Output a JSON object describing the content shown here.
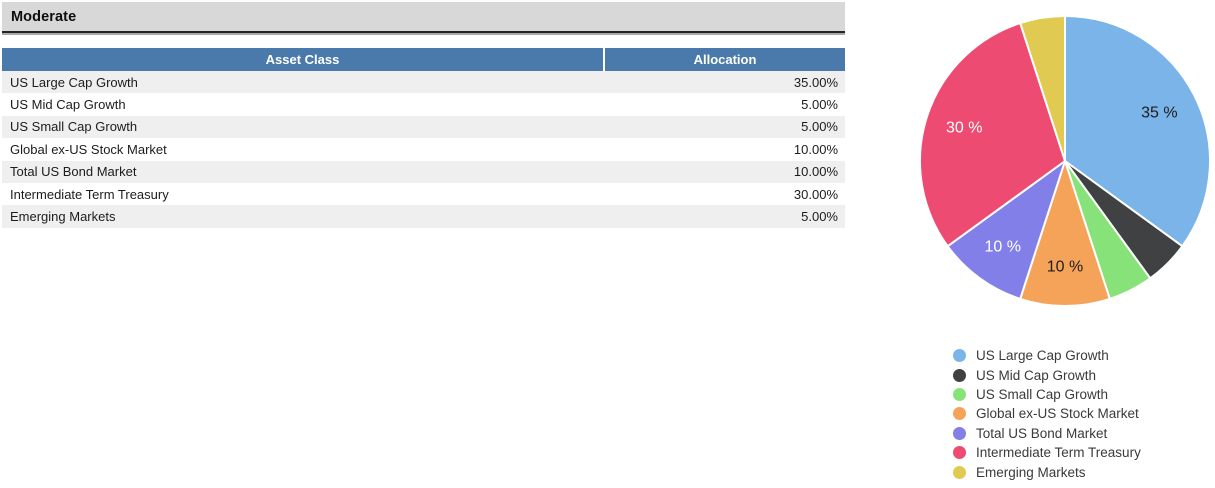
{
  "section": {
    "title": "Moderate"
  },
  "table": {
    "headers": {
      "asset_class": "Asset Class",
      "allocation": "Allocation"
    },
    "rows": [
      {
        "asset_class": "US Large Cap Growth",
        "allocation": "35.00%"
      },
      {
        "asset_class": "US Mid Cap Growth",
        "allocation": "5.00%"
      },
      {
        "asset_class": "US Small Cap Growth",
        "allocation": "5.00%"
      },
      {
        "asset_class": "Global ex-US Stock Market",
        "allocation": "10.00%"
      },
      {
        "asset_class": "Total US Bond Market",
        "allocation": "10.00%"
      },
      {
        "asset_class": "Intermediate Term Treasury",
        "allocation": "30.00%"
      },
      {
        "asset_class": "Emerging Markets",
        "allocation": "5.00%"
      }
    ]
  },
  "chart_data": {
    "type": "pie",
    "title": "",
    "categories": [
      "US Large Cap Growth",
      "US Mid Cap Growth",
      "US Small Cap Growth",
      "Global ex-US Stock Market",
      "Total US Bond Market",
      "Intermediate Term Treasury",
      "Emerging Markets"
    ],
    "values": [
      35,
      5,
      5,
      10,
      10,
      30,
      5
    ],
    "unit": "%",
    "value_labels": [
      "35 %",
      "",
      "",
      "10 %",
      "10 %",
      "30 %",
      ""
    ],
    "value_label_colors": [
      "#1d1d1d",
      "",
      "",
      "#1d1d1d",
      "#ffffff",
      "#ffffff",
      ""
    ],
    "colors": [
      "#7ab4e8",
      "#3f4143",
      "#87e379",
      "#f6a35a",
      "#8280e8",
      "#ed4b72",
      "#e1ca52"
    ],
    "start_angle_deg": 0,
    "direction": "clockwise",
    "slice_border_color": "#ffffff",
    "legend_position": "bottom-right"
  },
  "theme": {
    "section_title_bg": "#d8d8d8",
    "section_title_rule": "#242424",
    "table_header_bg": "#497aab",
    "table_header_text": "#ffffff",
    "row_bg": "#ffffff",
    "row_alt_bg": "#efefef",
    "text_color": "#1c1c1c"
  }
}
